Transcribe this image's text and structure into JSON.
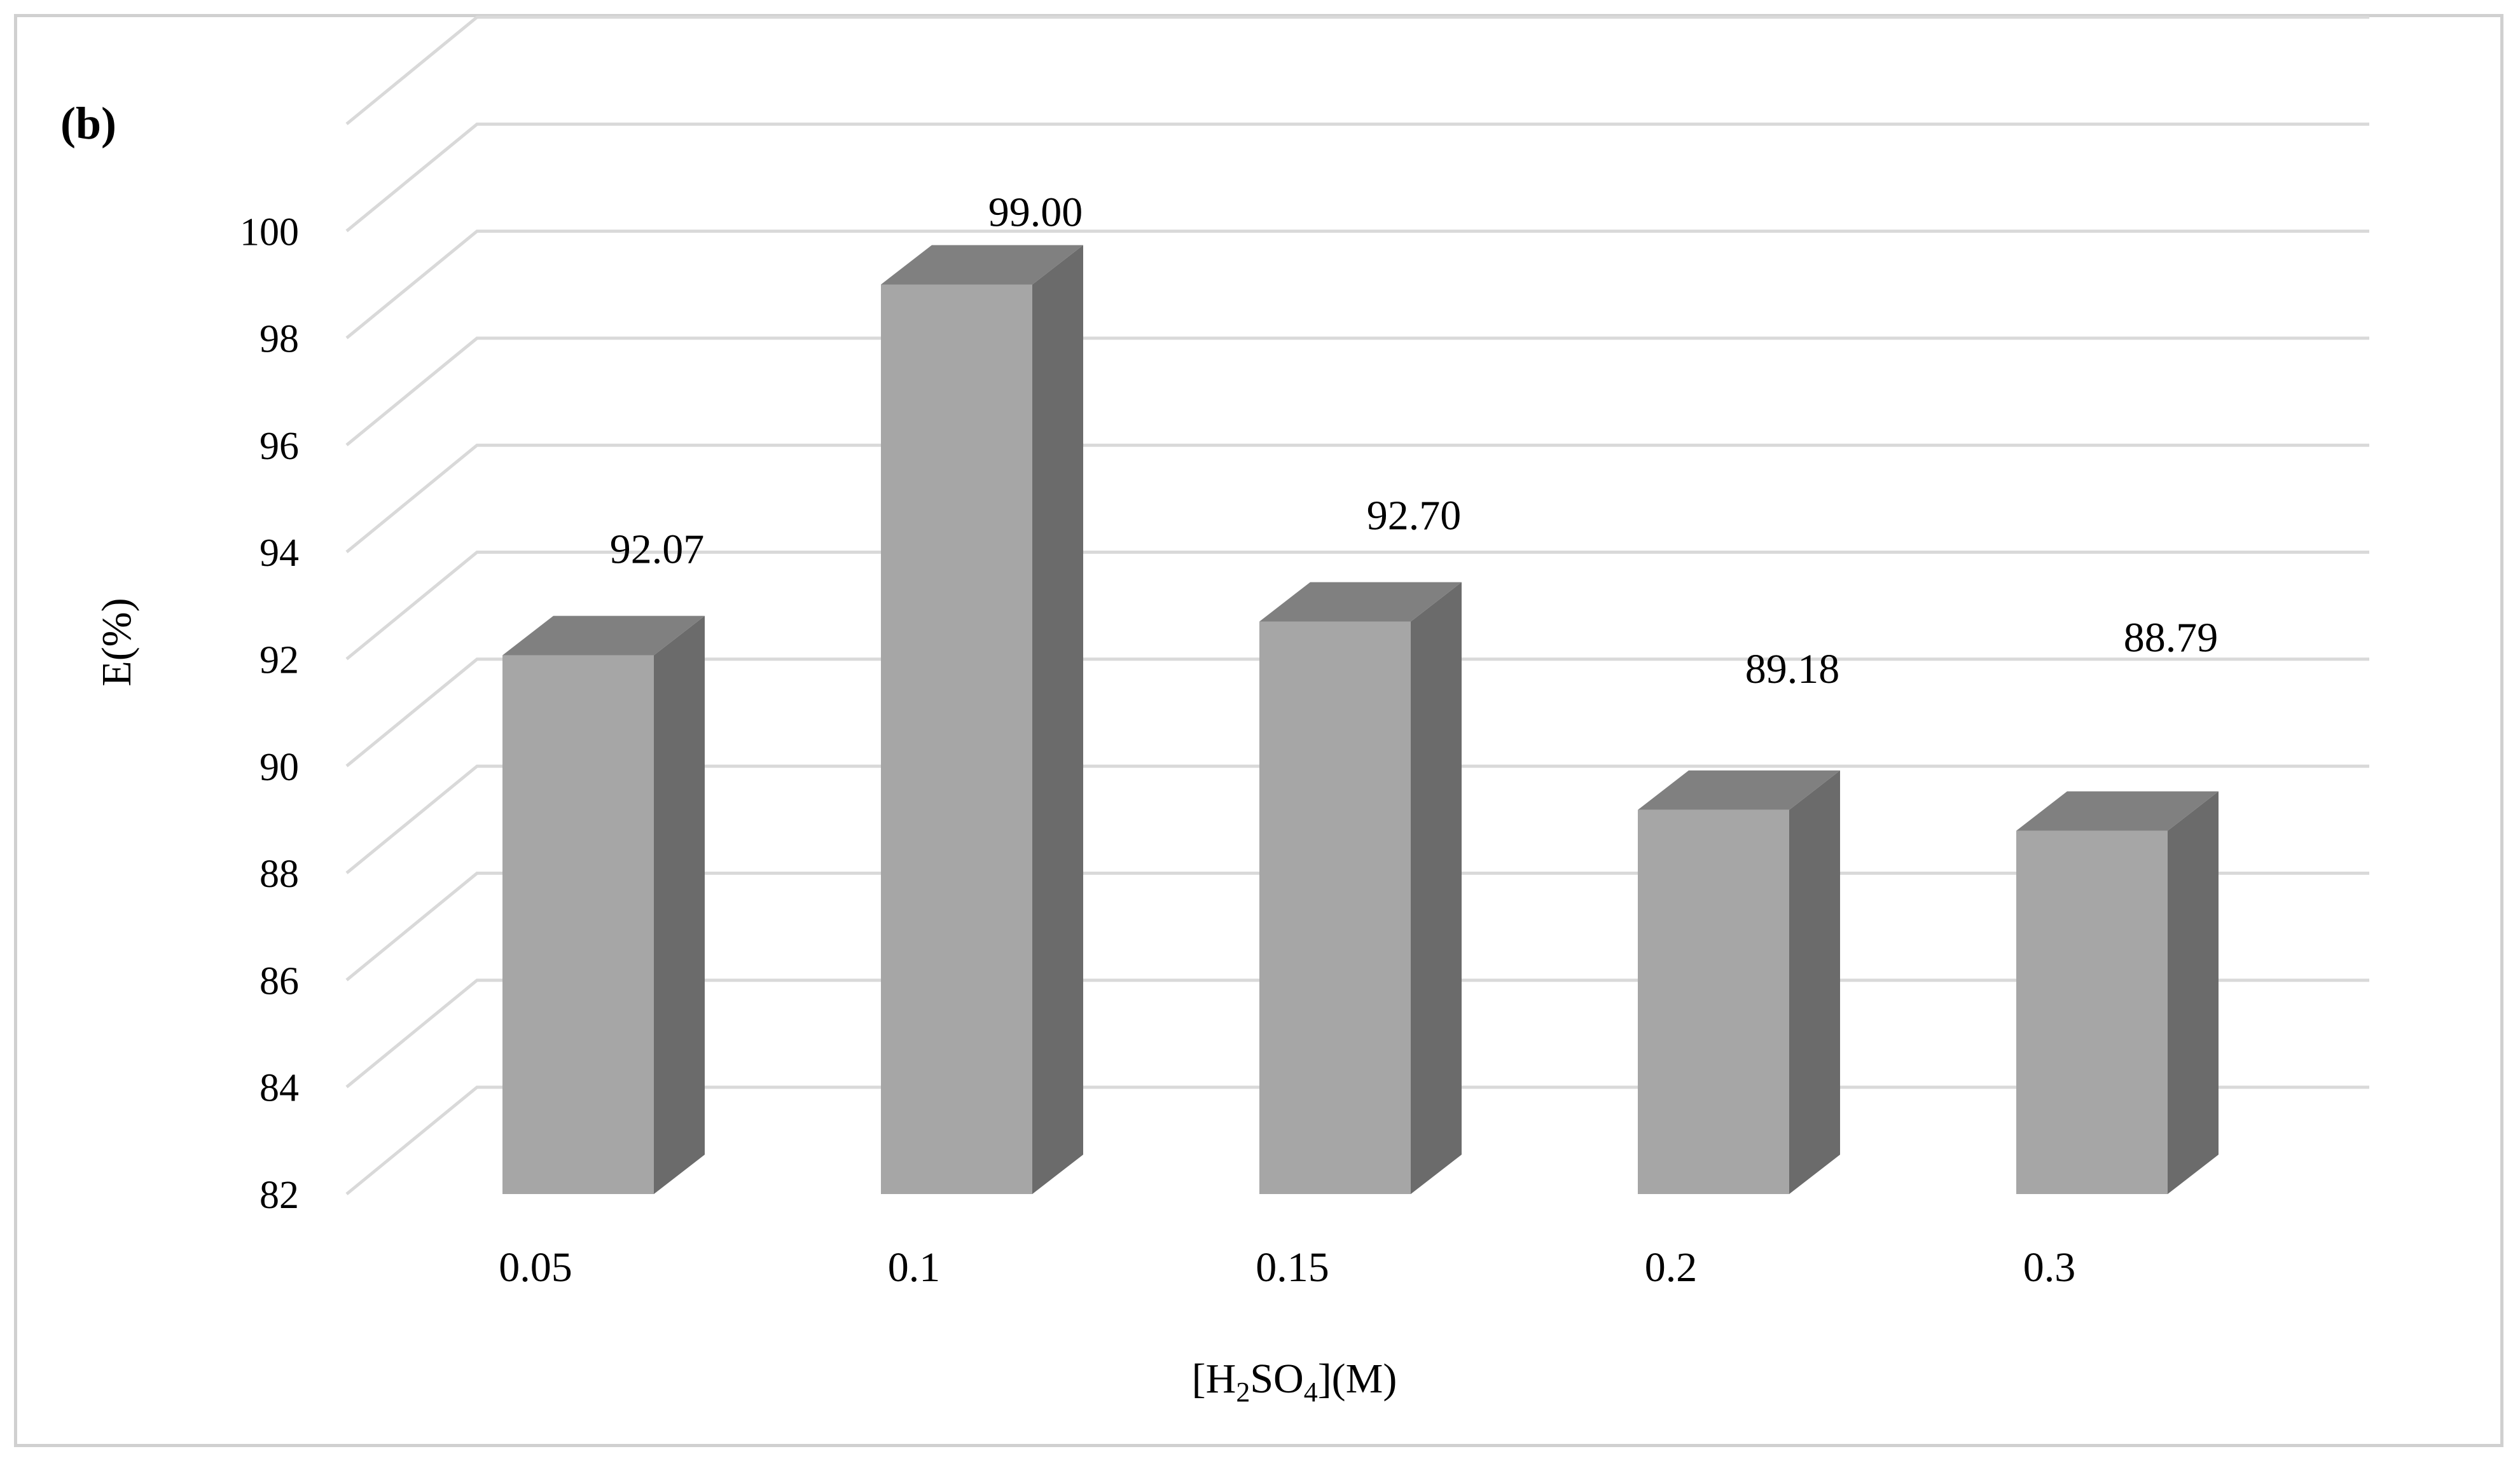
{
  "panel_label": "(b)",
  "colors": {
    "bar_front": "#a6a6a6",
    "bar_side": "#6b6b6b",
    "bar_top": "#808080",
    "grid": "#d9d9d9",
    "frame": "#d0d0d0",
    "text": "#000000"
  },
  "chart_data": {
    "type": "bar",
    "style": "3d-column",
    "categories": [
      "0.05",
      "0.1",
      "0.15",
      "0.2",
      "0.3"
    ],
    "values": [
      92.07,
      99.0,
      92.7,
      89.18,
      88.79
    ],
    "data_labels": [
      "92.07",
      "99.00",
      "92.70",
      "89.18",
      "88.79"
    ],
    "ylabel": "E(%)",
    "xlabel": {
      "pre": "[H",
      "sub1": "2",
      "mid": "SO",
      "sub2": "4",
      "post": "](M)"
    },
    "ylim": [
      82,
      100
    ],
    "yticks": [
      "82",
      "84",
      "86",
      "88",
      "90",
      "92",
      "94",
      "96",
      "98",
      "100"
    ],
    "grid": true,
    "legend": "none"
  }
}
